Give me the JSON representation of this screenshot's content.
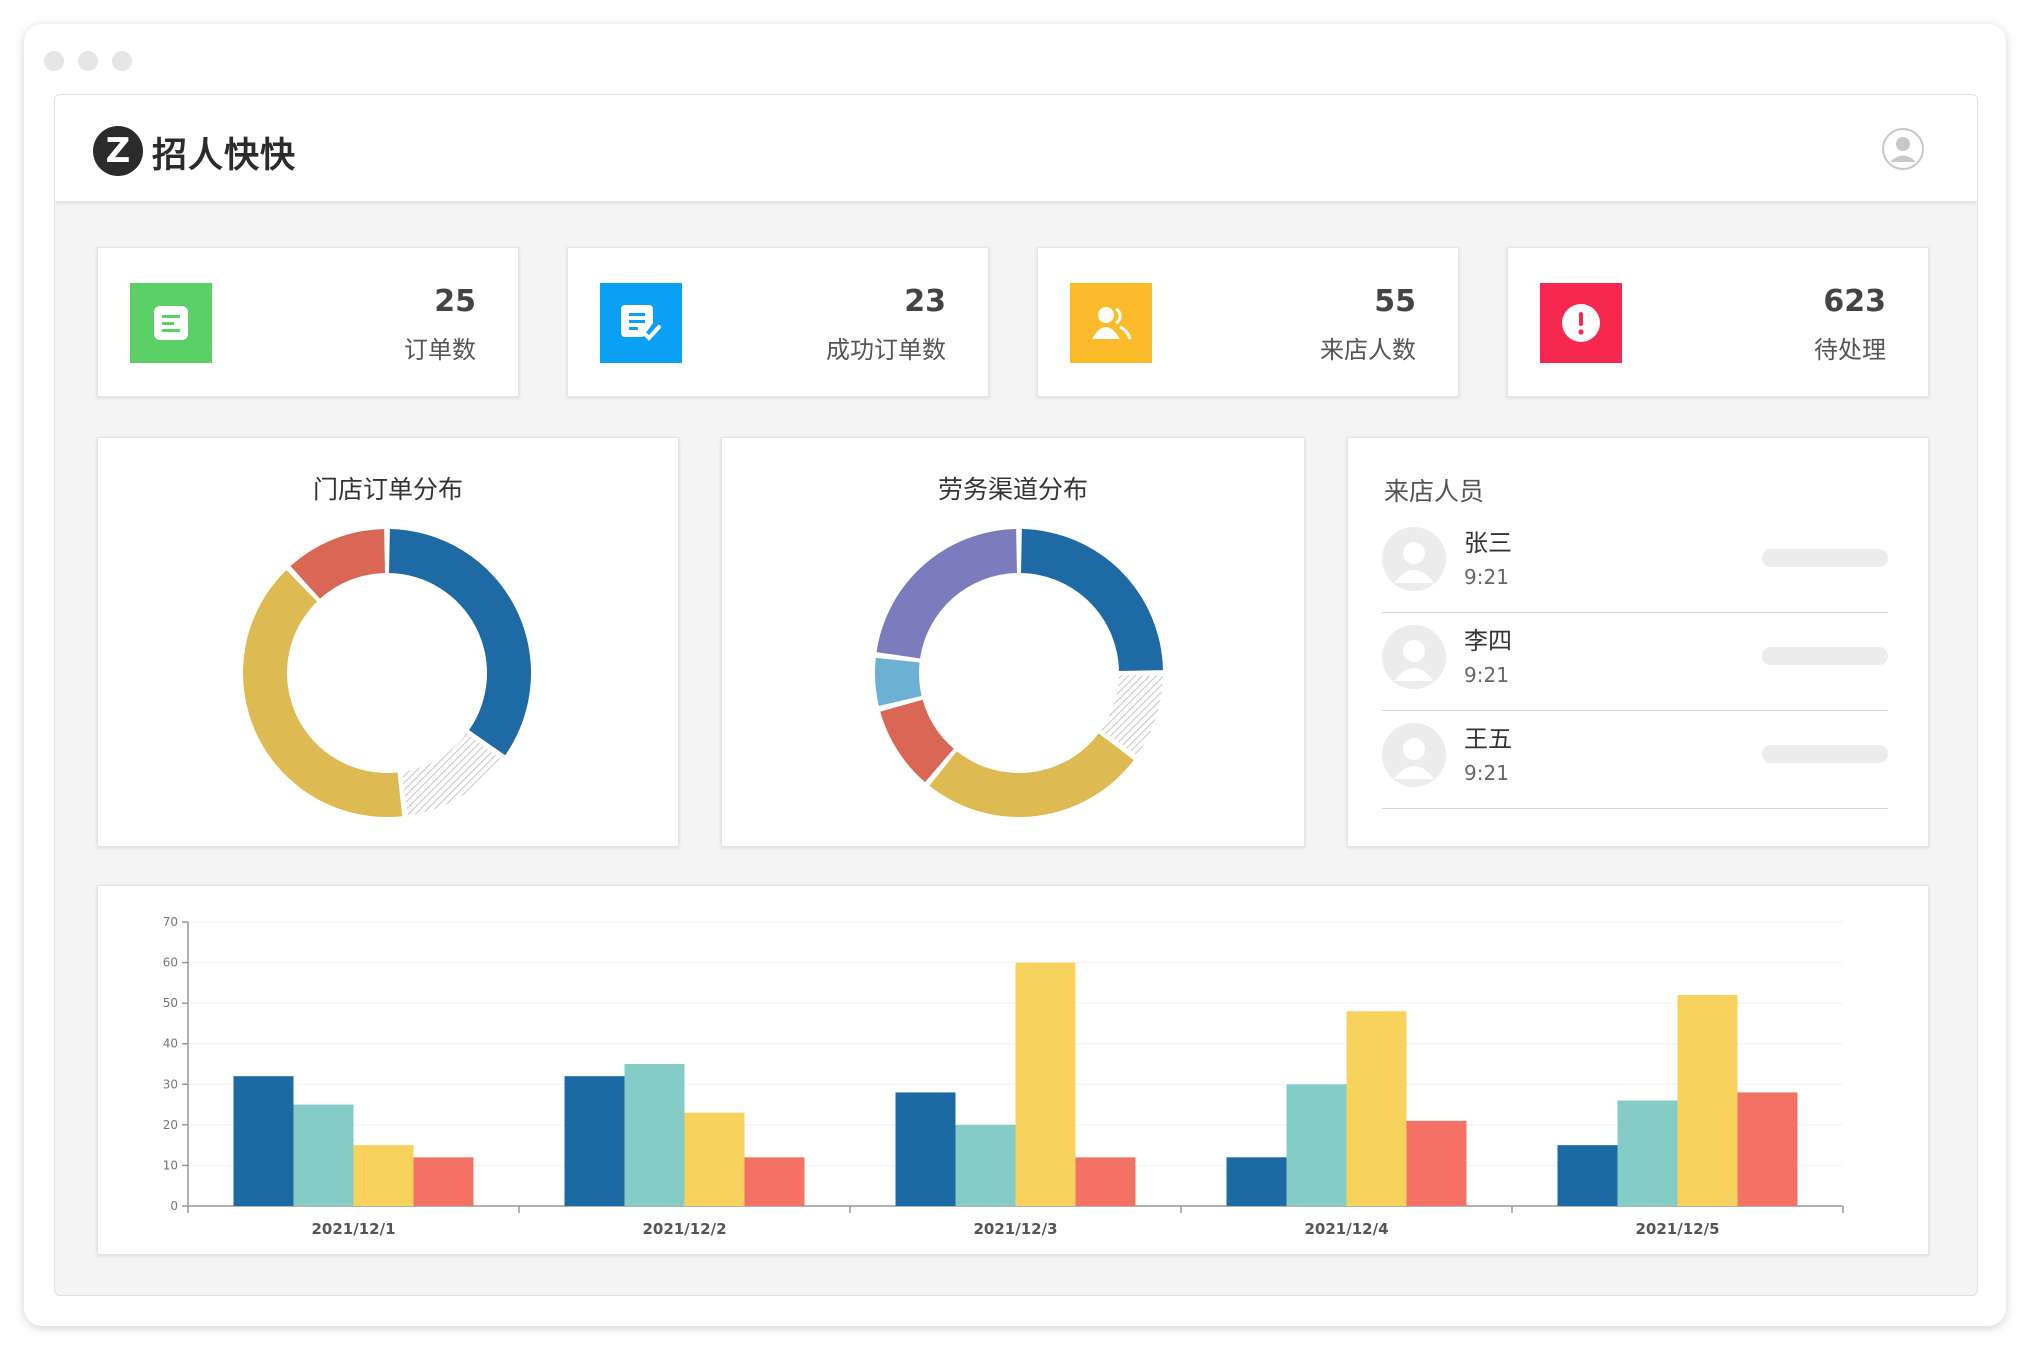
{
  "app": {
    "logo_letter": "Z",
    "brand": "招人快快"
  },
  "stats": [
    {
      "value": "25",
      "label": "订单数",
      "color": "#5bd066",
      "icon": "document-icon"
    },
    {
      "value": "23",
      "label": "成功订单数",
      "color": "#0aa1f5",
      "icon": "document-check-icon"
    },
    {
      "value": "55",
      "label": "来店人数",
      "color": "#fbbb2b",
      "icon": "users-icon"
    },
    {
      "value": "623",
      "label": "待处理",
      "color": "#f6284f",
      "icon": "alert-icon"
    }
  ],
  "donut1": {
    "title": "门店订单分布",
    "slices": [
      {
        "value": 35,
        "color": "#1d6aa5",
        "hatched": false
      },
      {
        "value": 13,
        "color": "#cccccc",
        "hatched": true
      },
      {
        "value": 40,
        "color": "#ddbb52",
        "hatched": false
      },
      {
        "value": 12,
        "color": "#da6656",
        "hatched": false
      }
    ]
  },
  "donut2": {
    "title": "劳务渠道分布",
    "slices": [
      {
        "value": 25,
        "color": "#1d6aa5",
        "hatched": false
      },
      {
        "value": 10,
        "color": "#cccccc",
        "hatched": true
      },
      {
        "value": 26,
        "color": "#ddbb52",
        "hatched": false
      },
      {
        "value": 10,
        "color": "#da6656",
        "hatched": false
      },
      {
        "value": 6,
        "color": "#6cb0d3",
        "hatched": false
      },
      {
        "value": 23,
        "color": "#7b7cbd",
        "hatched": false
      }
    ]
  },
  "visitors": {
    "title": "来店人员",
    "items": [
      {
        "name": "张三",
        "time": "9:21"
      },
      {
        "name": "李四",
        "time": "9:21"
      },
      {
        "name": "王五",
        "time": "9:21"
      }
    ]
  },
  "chart_data": {
    "type": "bar",
    "categories": [
      "2021/12/1",
      "2021/12/2",
      "2021/12/3",
      "2021/12/4",
      "2021/12/5"
    ],
    "series": [
      {
        "values": [
          32,
          32,
          28,
          12,
          15
        ],
        "color": "#1c6aa3"
      },
      {
        "values": [
          25,
          35,
          20,
          30,
          26
        ],
        "color": "#86ccc6"
      },
      {
        "values": [
          15,
          23,
          60,
          48,
          52
        ],
        "color": "#f7d35e"
      },
      {
        "values": [
          12,
          12,
          12,
          21,
          28
        ],
        "color": "#f37165"
      }
    ],
    "ylim": [
      0,
      70
    ],
    "yticks": [
      0,
      10,
      20,
      30,
      40,
      50,
      60,
      70
    ],
    "grid": true
  }
}
